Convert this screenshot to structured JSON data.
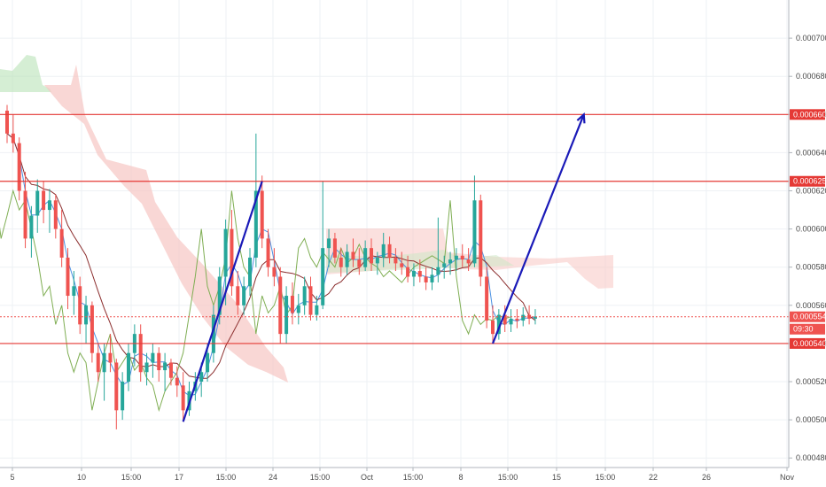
{
  "chart_data": {
    "type": "candlestick",
    "y_axis": {
      "position": "right",
      "range": [
        0.000475,
        0.00072
      ],
      "tick_labels": [
        "0.000700",
        "0.000680",
        "0.000660",
        "0.000640",
        "0.000620",
        "0.000600",
        "0.000580",
        "0.000560",
        "0.000540",
        "0.000520",
        "0.000500",
        "0.000480"
      ]
    },
    "x_axis": {
      "tick_labels": [
        "5",
        "10",
        "15:00",
        "17",
        "15:00",
        "24",
        "15:00",
        "Oct",
        "15:00",
        "8",
        "15:00",
        "15",
        "15:00",
        "22",
        "26",
        "Nov"
      ]
    },
    "grid": true,
    "horizontal_levels": [
      {
        "value": 0.00066,
        "label": "0.000660",
        "color": "#e53935"
      },
      {
        "value": 0.000625,
        "label": "0.000625",
        "color": "#e53935"
      },
      {
        "value": 0.00054,
        "label": "0.000540",
        "color": "#e53935"
      }
    ],
    "current_price": {
      "value": 0.000554,
      "label": "0.000554",
      "countdown": "09:30",
      "color": "#ef5350"
    },
    "trend_arrows": [
      {
        "from_index": 29,
        "from_price": 0.000499,
        "to_index": 42,
        "to_price": 0.000625
      },
      {
        "from_index": 80,
        "from_price": 0.00054,
        "to_index": 95,
        "to_price": 0.00066,
        "arrowhead": true
      }
    ],
    "candles_ohlc": [
      [
        0.000662,
        0.000665,
        0.000645,
        0.00065
      ],
      [
        0.00065,
        0.00066,
        0.00064,
        0.000645
      ],
      [
        0.000645,
        0.000648,
        0.000615,
        0.00062
      ],
      [
        0.00062,
        0.00063,
        0.00059,
        0.000595
      ],
      [
        0.000595,
        0.000612,
        0.000585,
        0.000607
      ],
      [
        0.000607,
        0.000626,
        0.000598,
        0.00062
      ],
      [
        0.00062,
        0.000625,
        0.000603,
        0.00061
      ],
      [
        0.00061,
        0.000621,
        0.000598,
        0.000615
      ],
      [
        0.000615,
        0.000618,
        0.000595,
        0.0006
      ],
      [
        0.0006,
        0.00061,
        0.00058,
        0.000585
      ],
      [
        0.000585,
        0.00059,
        0.000558,
        0.000565
      ],
      [
        0.000565,
        0.000578,
        0.000555,
        0.00057
      ],
      [
        0.00057,
        0.000575,
        0.000545,
        0.00055
      ],
      [
        0.00055,
        0.000565,
        0.00054,
        0.00056
      ],
      [
        0.00056,
        0.000562,
        0.00053,
        0.000535
      ],
      [
        0.000535,
        0.00054,
        0.00052,
        0.000525
      ],
      [
        0.000525,
        0.00054,
        0.00051,
        0.000535
      ],
      [
        0.000535,
        0.000545,
        0.000525,
        0.00053
      ],
      [
        0.00053,
        0.000532,
        0.000495,
        0.000505
      ],
      [
        0.000505,
        0.000525,
        0.0005,
        0.00052
      ],
      [
        0.00052,
        0.00054,
        0.000515,
        0.000535
      ],
      [
        0.000535,
        0.00055,
        0.000528,
        0.000545
      ],
      [
        0.000545,
        0.00055,
        0.00052,
        0.000525
      ],
      [
        0.000525,
        0.000535,
        0.000518,
        0.00053
      ],
      [
        0.00053,
        0.00054,
        0.000522,
        0.000535
      ],
      [
        0.000535,
        0.000538,
        0.00052,
        0.000526
      ],
      [
        0.000526,
        0.000535,
        0.000515,
        0.00053
      ],
      [
        0.00053,
        0.000532,
        0.000518,
        0.000522
      ],
      [
        0.000522,
        0.000528,
        0.000512,
        0.000518
      ],
      [
        0.000518,
        0.000525,
        0.000499,
        0.000505
      ],
      [
        0.000505,
        0.00052,
        0.000502,
        0.000515
      ],
      [
        0.000515,
        0.000525,
        0.00051,
        0.00052
      ],
      [
        0.00052,
        0.00053,
        0.000512,
        0.000525
      ],
      [
        0.000525,
        0.00054,
        0.00052,
        0.000535
      ],
      [
        0.000535,
        0.00056,
        0.00053,
        0.000555
      ],
      [
        0.000555,
        0.00058,
        0.00055,
        0.000575
      ],
      [
        0.000575,
        0.000605,
        0.00056,
        0.0006
      ],
      [
        0.0006,
        0.00061,
        0.000565,
        0.00057
      ],
      [
        0.00057,
        0.000578,
        0.000555,
        0.00056
      ],
      [
        0.00056,
        0.000575,
        0.000555,
        0.00057
      ],
      [
        0.00057,
        0.00059,
        0.000565,
        0.000585
      ],
      [
        0.000585,
        0.00065,
        0.00058,
        0.00062
      ],
      [
        0.00062,
        0.000628,
        0.00059,
        0.000595
      ],
      [
        0.000595,
        0.0006,
        0.000575,
        0.00058
      ],
      [
        0.00058,
        0.00059,
        0.00057,
        0.000575
      ],
      [
        0.000575,
        0.00058,
        0.00054,
        0.000545
      ],
      [
        0.000545,
        0.00057,
        0.00054,
        0.000565
      ],
      [
        0.000565,
        0.000572,
        0.00055,
        0.000556
      ],
      [
        0.000556,
        0.000566,
        0.00055,
        0.00056
      ],
      [
        0.00056,
        0.000575,
        0.000555,
        0.00057
      ],
      [
        0.00057,
        0.000575,
        0.000552,
        0.000555
      ],
      [
        0.000555,
        0.000565,
        0.000552,
        0.00056
      ],
      [
        0.00056,
        0.000625,
        0.000558,
        0.00059
      ],
      [
        0.00059,
        0.0006,
        0.00058,
        0.000595
      ],
      [
        0.000595,
        0.000598,
        0.000582,
        0.000585
      ],
      [
        0.000585,
        0.00059,
        0.000575,
        0.00058
      ],
      [
        0.00058,
        0.000592,
        0.000576,
        0.000588
      ],
      [
        0.000588,
        0.000595,
        0.00058,
        0.000584
      ],
      [
        0.000584,
        0.00059,
        0.000576,
        0.00058
      ],
      [
        0.00058,
        0.000594,
        0.000578,
        0.00059
      ],
      [
        0.00059,
        0.000595,
        0.000578,
        0.000582
      ],
      [
        0.000582,
        0.000588,
        0.000576,
        0.000585
      ],
      [
        0.000585,
        0.000598,
        0.00058,
        0.000592
      ],
      [
        0.000592,
        0.000596,
        0.000582,
        0.000585
      ],
      [
        0.000585,
        0.00059,
        0.000578,
        0.000582
      ],
      [
        0.000582,
        0.000588,
        0.000576,
        0.00058
      ],
      [
        0.00058,
        0.000586,
        0.000572,
        0.000575
      ],
      [
        0.000575,
        0.000582,
        0.00057,
        0.000578
      ],
      [
        0.000578,
        0.000584,
        0.000572,
        0.000575
      ],
      [
        0.000575,
        0.00058,
        0.000568,
        0.000572
      ],
      [
        0.000572,
        0.00058,
        0.000568,
        0.000576
      ],
      [
        0.000576,
        0.000606,
        0.000572,
        0.00058
      ],
      [
        0.00058,
        0.000586,
        0.000574,
        0.000582
      ],
      [
        0.000582,
        0.000588,
        0.000576,
        0.000584
      ],
      [
        0.000584,
        0.00059,
        0.000578,
        0.000586
      ],
      [
        0.000586,
        0.000592,
        0.00058,
        0.000584
      ],
      [
        0.000584,
        0.00059,
        0.000578,
        0.000582
      ],
      [
        0.000582,
        0.000628,
        0.00058,
        0.000615
      ],
      [
        0.000615,
        0.000618,
        0.00057,
        0.000575
      ],
      [
        0.000575,
        0.00058,
        0.000548,
        0.000552
      ],
      [
        0.000552,
        0.00056,
        0.00054,
        0.000545
      ],
      [
        0.000545,
        0.000558,
        0.000542,
        0.000555
      ],
      [
        0.000555,
        0.00056,
        0.000546,
        0.00055
      ],
      [
        0.00055,
        0.000558,
        0.000546,
        0.000553
      ],
      [
        0.000553,
        0.000558,
        0.000548,
        0.000552
      ],
      [
        0.000552,
        0.000559,
        0.000549,
        0.000555
      ],
      [
        0.000555,
        0.00056,
        0.00055,
        0.000553
      ],
      [
        0.000553,
        0.000558,
        0.00055,
        0.000554
      ]
    ]
  }
}
